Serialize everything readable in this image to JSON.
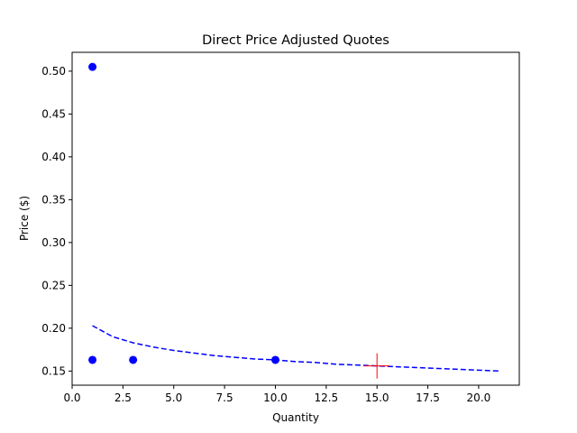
{
  "chart_data": {
    "type": "scatter",
    "title": "Direct Price Adjusted Quotes",
    "xlabel": "Quantity",
    "ylabel": "Price ($)",
    "xlim": [
      0,
      22
    ],
    "ylim": [
      0.1335,
      0.522
    ],
    "xticks": [
      0.0,
      2.5,
      5.0,
      7.5,
      10.0,
      12.5,
      15.0,
      17.5,
      20.0
    ],
    "xtick_labels": [
      "0.0",
      "2.5",
      "5.0",
      "7.5",
      "10.0",
      "12.5",
      "15.0",
      "17.5",
      "20.0"
    ],
    "yticks": [
      0.15,
      0.2,
      0.25,
      0.3,
      0.35,
      0.4,
      0.45,
      0.5
    ],
    "ytick_labels": [
      "0.15",
      "0.20",
      "0.25",
      "0.30",
      "0.35",
      "0.40",
      "0.45",
      "0.50"
    ],
    "grid": false,
    "series": [
      {
        "kind": "scatter",
        "color": "#0000ff",
        "points": [
          {
            "x": 1,
            "y": 0.505
          },
          {
            "x": 1,
            "y": 0.163
          },
          {
            "x": 3,
            "y": 0.163
          },
          {
            "x": 10,
            "y": 0.163
          }
        ]
      },
      {
        "kind": "line",
        "style": "dashed",
        "color": "#0000ff",
        "points": [
          {
            "x": 1,
            "y": 0.203
          },
          {
            "x": 2,
            "y": 0.19
          },
          {
            "x": 3,
            "y": 0.183
          },
          {
            "x": 4,
            "y": 0.178
          },
          {
            "x": 5,
            "y": 0.174
          },
          {
            "x": 6,
            "y": 0.171
          },
          {
            "x": 7,
            "y": 0.168
          },
          {
            "x": 8,
            "y": 0.166
          },
          {
            "x": 9,
            "y": 0.164
          },
          {
            "x": 10,
            "y": 0.163
          },
          {
            "x": 11,
            "y": 0.161
          },
          {
            "x": 12,
            "y": 0.16
          },
          {
            "x": 13,
            "y": 0.158
          },
          {
            "x": 14,
            "y": 0.157
          },
          {
            "x": 15,
            "y": 0.156
          },
          {
            "x": 16,
            "y": 0.155
          },
          {
            "x": 17,
            "y": 0.154
          },
          {
            "x": 18,
            "y": 0.153
          },
          {
            "x": 19,
            "y": 0.152
          },
          {
            "x": 20,
            "y": 0.151
          },
          {
            "x": 21,
            "y": 0.15
          }
        ]
      },
      {
        "kind": "marker",
        "marker": "plus",
        "color": "#ff0000",
        "points": [
          {
            "x": 15,
            "y": 0.156
          }
        ]
      }
    ]
  }
}
